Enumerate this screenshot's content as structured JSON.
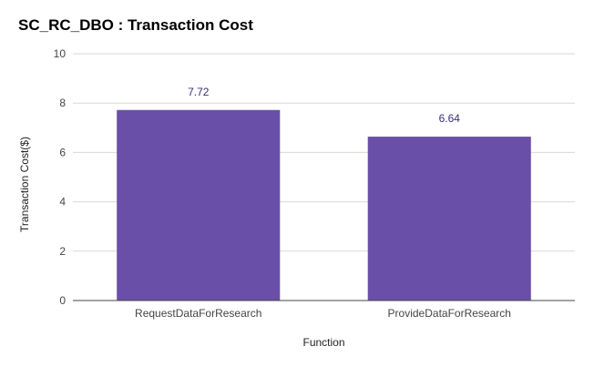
{
  "chart_data": {
    "type": "bar",
    "title": "SC_RC_DBO : Transaction Cost",
    "xlabel": "Function",
    "ylabel": "Transaction Cost($)",
    "categories": [
      "RequestDataForResearch",
      "ProvideDataForResearch"
    ],
    "values": [
      7.72,
      6.64
    ],
    "data_labels": [
      "7.72",
      "6.64"
    ],
    "ylim": [
      0,
      10
    ],
    "yticks": [
      0,
      2,
      4,
      6,
      8,
      10
    ],
    "grid": true,
    "legend": "none",
    "colors": {
      "bar": "#6a4fa8",
      "grid": "#d9d9d9",
      "axis": "#444444"
    }
  }
}
